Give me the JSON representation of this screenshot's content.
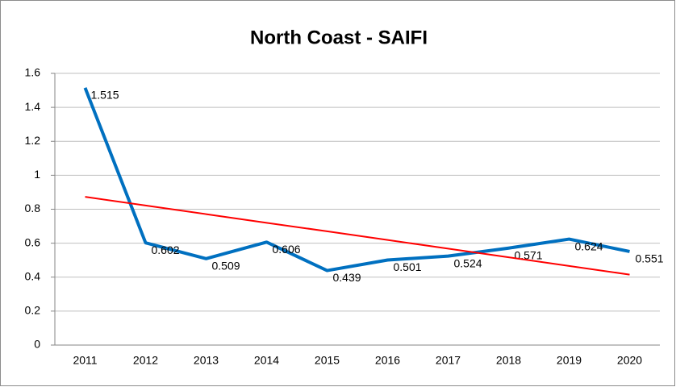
{
  "chart_data": {
    "type": "line",
    "title": "North Coast - SAIFI",
    "categories": [
      "2011",
      "2012",
      "2013",
      "2014",
      "2015",
      "2016",
      "2017",
      "2018",
      "2019",
      "2020"
    ],
    "series": [
      {
        "color": "#0070c0",
        "values": [
          1.515,
          0.602,
          0.509,
          0.606,
          0.439,
          0.501,
          0.524,
          0.571,
          0.624,
          0.551
        ],
        "labels": true
      },
      {
        "color": "#ff0000",
        "values": [
          0.873,
          0.822,
          0.771,
          0.72,
          0.67,
          0.619,
          0.568,
          0.517,
          0.466,
          0.415
        ],
        "labels": false
      }
    ],
    "ylim": [
      0,
      1.6
    ],
    "yticks": [
      0,
      0.2,
      0.4,
      0.6,
      0.8,
      1,
      1.2,
      1.4,
      1.6
    ],
    "grid": true
  }
}
